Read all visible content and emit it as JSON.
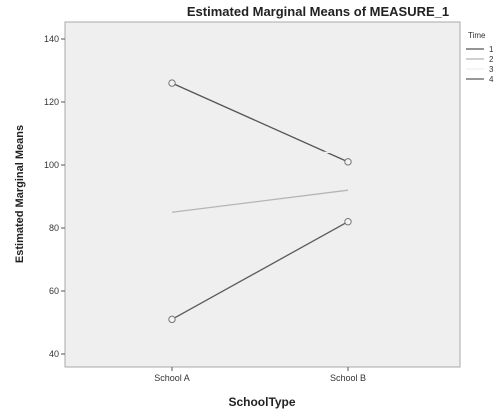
{
  "chart_data": {
    "type": "line",
    "title": "Estimated Marginal Means of MEASURE_1",
    "xlabel": "SchoolType",
    "ylabel": "Estimated Marginal Means",
    "categories": [
      "School A",
      "School B"
    ],
    "ylim": [
      40,
      140
    ],
    "yticks": [
      40,
      60,
      80,
      100,
      120,
      140
    ],
    "legend_title": "Time",
    "legend_position": "right",
    "grid": false,
    "series": [
      {
        "name": "1",
        "values": [
          126,
          101
        ],
        "color": "#555555",
        "markers": true
      },
      {
        "name": "2",
        "values": [
          85,
          92
        ],
        "color": "#b5b5b5",
        "markers": false
      },
      {
        "name": "3",
        "values": [
          104,
          104
        ],
        "color": "#efefef",
        "markers": false
      },
      {
        "name": "4",
        "values": [
          51,
          82
        ],
        "color": "#5a5a5a",
        "markers": true
      }
    ]
  }
}
